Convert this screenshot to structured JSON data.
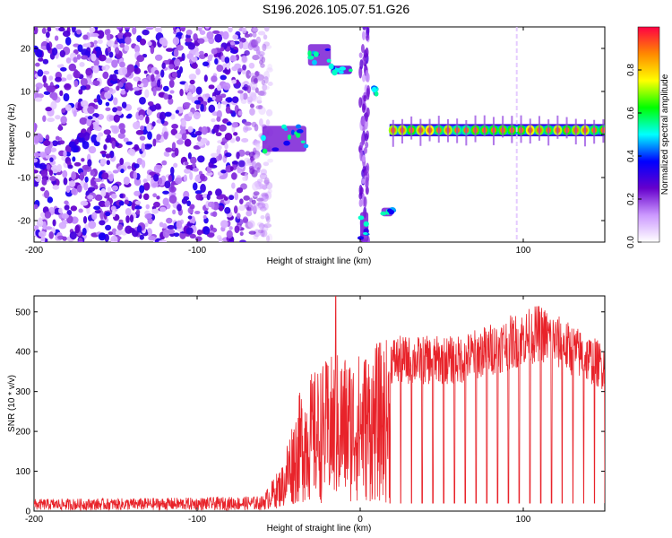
{
  "title": "S196.2026.105.07.51.G26",
  "chart_data": [
    {
      "type": "heatmap",
      "xlabel": "Height of straight line (km)",
      "ylabel": "Frequency (Hz)",
      "xlim": [
        -200,
        150
      ],
      "ylim": [
        -25,
        25
      ],
      "x_ticks": [
        -200,
        -100,
        0,
        100
      ],
      "x_tick_labels": [
        "-200",
        "-100",
        "0",
        "100"
      ],
      "y_ticks": [
        20,
        10,
        0,
        -10,
        -20
      ],
      "y_tick_labels": [
        "20",
        "10",
        "0",
        "-10",
        "-20"
      ],
      "colorbar": {
        "label": "Normalized spectral amplitude",
        "range": [
          0,
          1
        ],
        "ticks": [
          0.0,
          0.2,
          0.4,
          0.6,
          0.8
        ],
        "tick_labels": [
          "0.0",
          "0.2",
          "0.4",
          "0.6",
          "0.8"
        ],
        "colormap": [
          "#ffffff",
          "#cc99ff",
          "#6600cc",
          "#0000ff",
          "#00ffff",
          "#00ff00",
          "#ffff00",
          "#ff8800",
          "#ff0044"
        ]
      },
      "features": [
        {
          "x": [
            -200,
            -55
          ],
          "y": [
            -25,
            25
          ],
          "level": 0.25
        },
        {
          "x": [
            -60,
            -33
          ],
          "y": [
            -4,
            2
          ],
          "level": 0.45
        },
        {
          "x": [
            -32,
            -18
          ],
          "y": [
            16,
            21
          ],
          "level": 0.45
        },
        {
          "x": [
            -18,
            -5
          ],
          "y": [
            14,
            16
          ],
          "level": 0.55
        },
        {
          "x": [
            0,
            5
          ],
          "y": [
            -25,
            25
          ],
          "level": 0.3
        },
        {
          "x": [
            8,
            10
          ],
          "y": [
            9,
            11
          ],
          "level": 0.5
        },
        {
          "x": [
            0,
            5
          ],
          "y": [
            -25,
            -18
          ],
          "level": 0.45
        },
        {
          "x": [
            13,
            20
          ],
          "y": [
            -19,
            -17
          ],
          "level": 0.45
        },
        {
          "x": [
            18,
            150
          ],
          "y": [
            0,
            2
          ],
          "level": 0.9
        }
      ]
    },
    {
      "type": "line",
      "xlabel": "Height of straight line (km)",
      "ylabel": "SNR (10 * v/v)",
      "xlim": [
        -200,
        150
      ],
      "ylim": [
        0,
        540
      ],
      "x_ticks": [
        -200,
        -100,
        0,
        100
      ],
      "x_tick_labels": [
        "-200",
        "-100",
        "0",
        "100"
      ],
      "y_ticks": [
        0,
        100,
        200,
        300,
        400,
        500
      ],
      "y_tick_labels": [
        "0",
        "100",
        "200",
        "300",
        "400",
        "500"
      ],
      "series": [
        {
          "color": "#e8232a",
          "envelope": [
            {
              "x": -200,
              "low": 2,
              "high": 40
            },
            {
              "x": -100,
              "low": 2,
              "high": 45
            },
            {
              "x": -60,
              "low": 2,
              "high": 50
            },
            {
              "x": -45,
              "low": 10,
              "high": 180
            },
            {
              "x": -35,
              "low": 20,
              "high": 330
            },
            {
              "x": -15,
              "low": 20,
              "high": 400
            },
            {
              "x": 0,
              "low": 20,
              "high": 400
            },
            {
              "x": 18,
              "low": 20,
              "high": 440
            },
            {
              "x": 60,
              "low": 20,
              "high": 440
            },
            {
              "x": 110,
              "low": 20,
              "high": 520
            },
            {
              "x": 150,
              "low": 20,
              "high": 420
            }
          ],
          "peak": {
            "x": -15,
            "y": 540
          }
        }
      ]
    }
  ]
}
